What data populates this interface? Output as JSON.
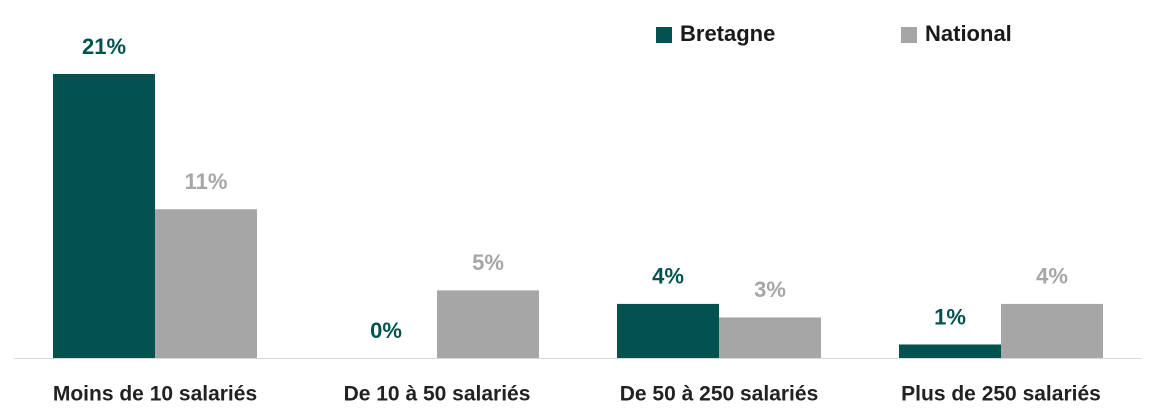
{
  "chart_data": {
    "type": "bar",
    "categories": [
      "Moins de 10 salariés",
      "De 10 à 50 salariés",
      "De 50 à 250 salariés",
      "Plus de 250 salariés"
    ],
    "series": [
      {
        "name": "Bretagne",
        "color": "#03524f",
        "values": [
          21,
          0,
          4,
          1
        ],
        "value_labels": [
          "21%",
          "0%",
          "4%",
          "1%"
        ]
      },
      {
        "name": "National",
        "color": "#a6a6a6",
        "values": [
          11,
          5,
          3,
          4
        ],
        "value_labels": [
          "11%",
          "5%",
          "3%",
          "4%"
        ]
      }
    ],
    "legend": "top-right"
  }
}
